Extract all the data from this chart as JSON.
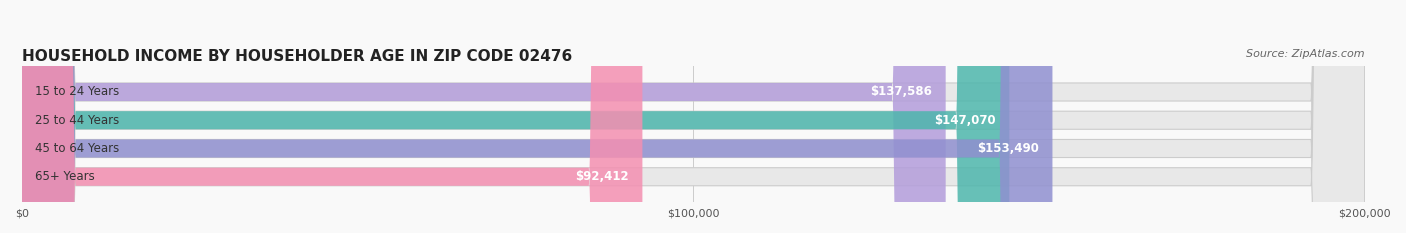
{
  "title": "HOUSEHOLD INCOME BY HOUSEHOLDER AGE IN ZIP CODE 02476",
  "source": "Source: ZipAtlas.com",
  "categories": [
    "15 to 24 Years",
    "25 to 44 Years",
    "45 to 64 Years",
    "65+ Years"
  ],
  "values": [
    137586,
    147070,
    153490,
    92412
  ],
  "bar_colors": [
    "#b39ddb",
    "#4db6ac",
    "#9090d0",
    "#f48fb1"
  ],
  "bar_bg_color": "#e8e8e8",
  "xlim": [
    0,
    200000
  ],
  "xticks": [
    0,
    100000,
    200000
  ],
  "xtick_labels": [
    "$0",
    "$100,000",
    "$200,000"
  ],
  "value_labels": [
    "$137,586",
    "$147,070",
    "$153,490",
    "$92,412"
  ],
  "title_fontsize": 11,
  "source_fontsize": 8,
  "label_fontsize": 8.5,
  "value_fontsize": 8.5,
  "background_color": "#f9f9f9"
}
